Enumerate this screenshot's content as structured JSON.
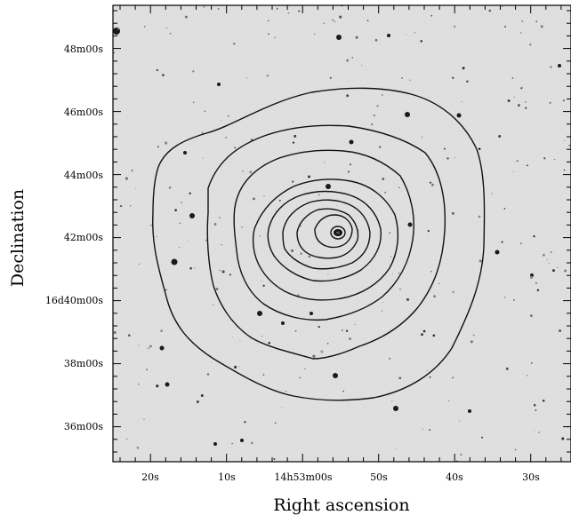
{
  "figure": {
    "xlabel": "Right ascension",
    "ylabel": "Declination",
    "x_ticks": [
      "20s",
      "10s",
      "14h53m00s",
      "50s",
      "40s",
      "30s"
    ],
    "y_ticks": [
      "48m00s",
      "46m00s",
      "44m00s",
      "42m00s",
      "16d40m00s",
      "38m00s",
      "36m00s"
    ],
    "contour_levels": 9,
    "colors": {
      "background": "#e3e3e3",
      "contour": "#111111",
      "frame": "#000000"
    }
  }
}
